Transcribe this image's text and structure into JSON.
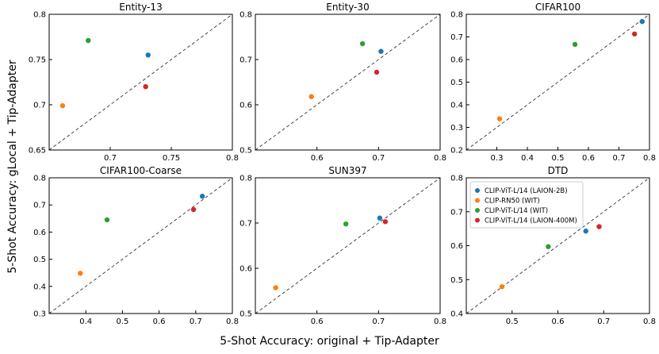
{
  "figure": {
    "xlabel": "5-Shot Accuracy: original + Tip-Adapter",
    "ylabel": "5-Shot Accuracy: gLocal + Tip-Adapter"
  },
  "legend": {
    "placement": "top-left of DTD panel",
    "entries": [
      {
        "name": "CLIP-ViT-L/14 (LAION-2B)",
        "color": "#1f77b4"
      },
      {
        "name": "CLIP-RN50 (WIT)",
        "color": "#ff7f0e"
      },
      {
        "name": "CLIP-ViT-L/14 (WIT)",
        "color": "#2ca02c"
      },
      {
        "name": "CLIP-ViT-L/14 (LAION-400M)",
        "color": "#d62728"
      }
    ]
  },
  "chart_data": [
    {
      "type": "scatter",
      "title": "Entity-13",
      "xlim": [
        0.65,
        0.8
      ],
      "ylim": [
        0.65,
        0.8
      ],
      "xticks": [
        "0.7",
        "0.75",
        "0.8"
      ],
      "yticks": [
        "0.65",
        "0.7",
        "0.75",
        "0.8"
      ],
      "xtick_values": [
        0.7,
        0.75,
        0.8
      ],
      "ytick_values": [
        0.65,
        0.7,
        0.75,
        0.8
      ],
      "diagonal": true,
      "points": [
        {
          "series": "CLIP-ViT-L/14 (LAION-2B)",
          "x": 0.731,
          "y": 0.755
        },
        {
          "series": "CLIP-RN50 (WIT)",
          "x": 0.661,
          "y": 0.699
        },
        {
          "series": "CLIP-ViT-L/14 (WIT)",
          "x": 0.682,
          "y": 0.771
        },
        {
          "series": "CLIP-ViT-L/14 (LAION-400M)",
          "x": 0.729,
          "y": 0.72
        }
      ]
    },
    {
      "type": "scatter",
      "title": "Entity-30",
      "xlim": [
        0.5,
        0.8
      ],
      "ylim": [
        0.5,
        0.8
      ],
      "xticks": [
        "0.6",
        "0.7",
        "0.8"
      ],
      "yticks": [
        "0.5",
        "0.6",
        "0.7",
        "0.8"
      ],
      "xtick_values": [
        0.6,
        0.7,
        0.8
      ],
      "ytick_values": [
        0.5,
        0.6,
        0.7,
        0.8
      ],
      "diagonal": true,
      "points": [
        {
          "series": "CLIP-ViT-L/14 (LAION-2B)",
          "x": 0.704,
          "y": 0.718
        },
        {
          "series": "CLIP-RN50 (WIT)",
          "x": 0.591,
          "y": 0.618
        },
        {
          "series": "CLIP-ViT-L/14 (WIT)",
          "x": 0.674,
          "y": 0.735
        },
        {
          "series": "CLIP-ViT-L/14 (LAION-400M)",
          "x": 0.697,
          "y": 0.672
        }
      ]
    },
    {
      "type": "scatter",
      "title": "CIFAR100",
      "xlim": [
        0.2,
        0.8
      ],
      "ylim": [
        0.2,
        0.8
      ],
      "xticks": [
        "0.3",
        "0.4",
        "0.5",
        "0.6",
        "0.7",
        "0.8"
      ],
      "yticks": [
        "0.2",
        "0.3",
        "0.4",
        "0.5",
        "0.6",
        "0.7",
        "0.8"
      ],
      "xtick_values": [
        0.3,
        0.4,
        0.5,
        0.6,
        0.7,
        0.8
      ],
      "ytick_values": [
        0.2,
        0.3,
        0.4,
        0.5,
        0.6,
        0.7,
        0.8
      ],
      "diagonal": true,
      "points": [
        {
          "series": "CLIP-ViT-L/14 (LAION-2B)",
          "x": 0.776,
          "y": 0.768
        },
        {
          "series": "CLIP-RN50 (WIT)",
          "x": 0.309,
          "y": 0.338
        },
        {
          "series": "CLIP-ViT-L/14 (WIT)",
          "x": 0.556,
          "y": 0.667
        },
        {
          "series": "CLIP-ViT-L/14 (LAION-400M)",
          "x": 0.751,
          "y": 0.713
        }
      ]
    },
    {
      "type": "scatter",
      "title": "CIFAR100-Coarse",
      "xlim": [
        0.3,
        0.8
      ],
      "ylim": [
        0.3,
        0.8
      ],
      "xticks": [
        "0.4",
        "0.5",
        "0.6",
        "0.7",
        "0.8"
      ],
      "yticks": [
        "0.3",
        "0.4",
        "0.5",
        "0.6",
        "0.7",
        "0.8"
      ],
      "xtick_values": [
        0.4,
        0.5,
        0.6,
        0.7,
        0.8
      ],
      "ytick_values": [
        0.3,
        0.4,
        0.5,
        0.6,
        0.7,
        0.8
      ],
      "diagonal": true,
      "points": [
        {
          "series": "CLIP-ViT-L/14 (LAION-2B)",
          "x": 0.718,
          "y": 0.732
        },
        {
          "series": "CLIP-RN50 (WIT)",
          "x": 0.385,
          "y": 0.448
        },
        {
          "series": "CLIP-ViT-L/14 (WIT)",
          "x": 0.458,
          "y": 0.645
        },
        {
          "series": "CLIP-ViT-L/14 (LAION-400M)",
          "x": 0.694,
          "y": 0.683
        }
      ]
    },
    {
      "type": "scatter",
      "title": "SUN397",
      "xlim": [
        0.5,
        0.8
      ],
      "ylim": [
        0.5,
        0.8
      ],
      "xticks": [
        "0.6",
        "0.7",
        "0.8"
      ],
      "yticks": [
        "0.5",
        "0.6",
        "0.7",
        "0.8"
      ],
      "xtick_values": [
        0.6,
        0.7,
        0.8
      ],
      "ytick_values": [
        0.5,
        0.6,
        0.7,
        0.8
      ],
      "diagonal": true,
      "points": [
        {
          "series": "CLIP-ViT-L/14 (LAION-2B)",
          "x": 0.702,
          "y": 0.711
        },
        {
          "series": "CLIP-RN50 (WIT)",
          "x": 0.533,
          "y": 0.557
        },
        {
          "series": "CLIP-ViT-L/14 (WIT)",
          "x": 0.647,
          "y": 0.698
        },
        {
          "series": "CLIP-ViT-L/14 (LAION-400M)",
          "x": 0.711,
          "y": 0.703
        }
      ]
    },
    {
      "type": "scatter",
      "title": "DTD",
      "xlim": [
        0.4,
        0.8
      ],
      "ylim": [
        0.4,
        0.8
      ],
      "xticks": [
        "0.5",
        "0.6",
        "0.7",
        "0.8"
      ],
      "yticks": [
        "0.4",
        "0.5",
        "0.6",
        "0.7",
        "0.8"
      ],
      "xtick_values": [
        0.5,
        0.6,
        0.7,
        0.8
      ],
      "ytick_values": [
        0.4,
        0.5,
        0.6,
        0.7,
        0.8
      ],
      "diagonal": true,
      "points": [
        {
          "series": "CLIP-ViT-L/14 (LAION-2B)",
          "x": 0.661,
          "y": 0.643
        },
        {
          "series": "CLIP-RN50 (WIT)",
          "x": 0.478,
          "y": 0.479
        },
        {
          "series": "CLIP-ViT-L/14 (WIT)",
          "x": 0.579,
          "y": 0.597
        },
        {
          "series": "CLIP-ViT-L/14 (LAION-400M)",
          "x": 0.69,
          "y": 0.656
        }
      ]
    }
  ]
}
